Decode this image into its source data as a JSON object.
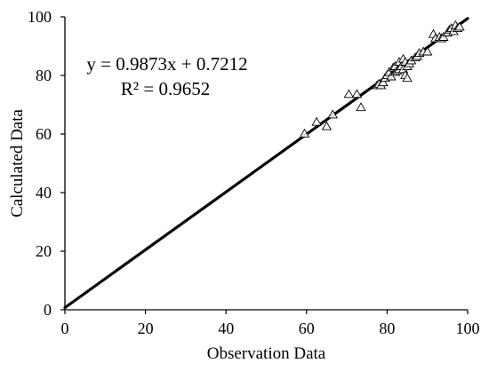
{
  "chart_data": {
    "type": "scatter",
    "title": "",
    "xlabel": "Observation Data",
    "ylabel": "Calculated Data",
    "xlim": [
      0,
      100
    ],
    "ylim": [
      0,
      100
    ],
    "xticks": [
      0,
      20,
      40,
      60,
      80,
      100
    ],
    "yticks": [
      0,
      20,
      40,
      60,
      80,
      100
    ],
    "grid": false,
    "legend": "none",
    "marker": "triangle-open",
    "series": [
      {
        "points": [
          [
            59.5,
            60
          ],
          [
            62.5,
            64
          ],
          [
            65,
            62.5
          ],
          [
            66.5,
            66.5
          ],
          [
            70.5,
            73.5
          ],
          [
            72.5,
            73.5
          ],
          [
            73.5,
            69
          ],
          [
            77.5,
            76.5
          ],
          [
            78,
            77
          ],
          [
            78.5,
            76.5
          ],
          [
            79,
            77.5
          ],
          [
            79.5,
            79
          ],
          [
            80,
            80
          ],
          [
            80.5,
            81
          ],
          [
            81,
            79.5
          ],
          [
            81.5,
            82.5
          ],
          [
            82,
            81
          ],
          [
            82,
            83
          ],
          [
            82.5,
            81.5
          ],
          [
            83,
            82
          ],
          [
            83,
            84.5
          ],
          [
            83.5,
            83
          ],
          [
            84,
            85.5
          ],
          [
            84,
            82
          ],
          [
            84.5,
            84.5
          ],
          [
            84.5,
            80
          ],
          [
            85,
            79
          ],
          [
            85,
            83
          ],
          [
            85.5,
            84
          ],
          [
            86,
            85
          ],
          [
            87,
            86
          ],
          [
            87.5,
            86.5
          ],
          [
            88,
            87.5
          ],
          [
            89,
            88
          ],
          [
            90,
            88
          ],
          [
            91.5,
            94
          ],
          [
            92,
            92.5
          ],
          [
            93,
            93
          ],
          [
            93.5,
            92.5
          ],
          [
            94,
            93
          ],
          [
            95,
            94.5
          ],
          [
            95.5,
            95.5
          ],
          [
            96,
            96
          ],
          [
            96.5,
            95
          ],
          [
            97,
            97
          ],
          [
            97.5,
            96
          ],
          [
            98,
            96.5
          ]
        ]
      }
    ],
    "trendline": {
      "slope": 0.9873,
      "intercept": 0.7212,
      "x_range": [
        0,
        100
      ]
    },
    "annotations": {
      "equation": "y = 0.9873x + 0.7212",
      "r_squared": "R² = 0.9652"
    },
    "colors": {
      "axis": "#000000",
      "marker": "#000000",
      "trendline": "#000000"
    }
  }
}
